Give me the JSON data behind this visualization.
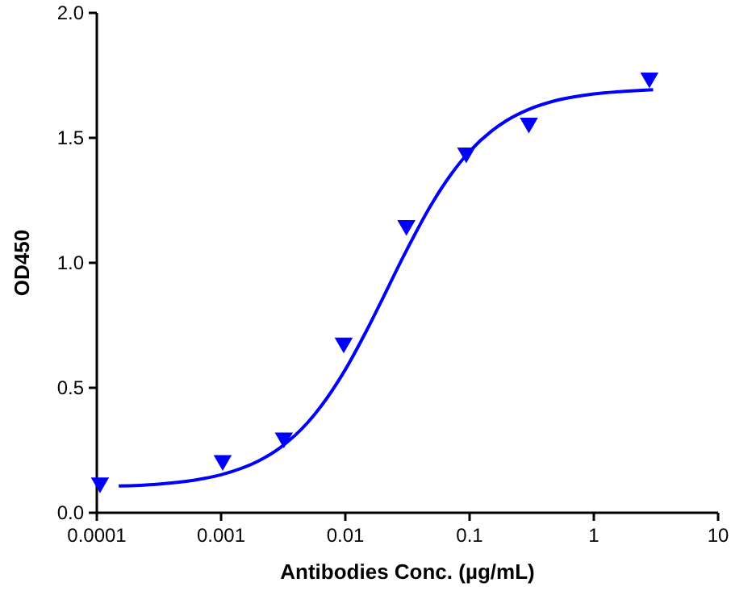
{
  "chart_data": {
    "type": "scatter",
    "xlabel": "Antibodies Conc. (µg/mL)",
    "ylabel": "OD450",
    "log": "x",
    "xlim": [
      0.0001,
      10
    ],
    "xticks": [
      0.0001,
      0.001,
      0.01,
      0.1,
      1,
      10
    ],
    "ylim": [
      0,
      2
    ],
    "yticks": [
      {
        "value": 0,
        "label": "0.0"
      },
      {
        "value": 0.5,
        "label": "0.5"
      },
      {
        "value": 1,
        "label": "1.0"
      },
      {
        "value": 1.5,
        "label": "1.5"
      },
      {
        "value": 2,
        "label": "2.0"
      }
    ],
    "grid": false,
    "series": [
      {
        "color": "#0000ff",
        "marker": "triangle",
        "x": [
          0.000106,
          0.00103,
          0.0032,
          0.0097,
          0.031,
          0.094,
          0.3,
          2.8
        ],
        "values": [
          0.12,
          0.21,
          0.3,
          0.68,
          1.15,
          1.44,
          1.56,
          1.74
        ]
      },
      {
        "type": "line",
        "color": "#0000ff",
        "marker": "none",
        "line_style": "solid",
        "x": [
          0.00015,
          0.0003,
          0.0006,
          0.001,
          0.002,
          0.003,
          0.005,
          0.007,
          0.01,
          0.015,
          0.02,
          0.03,
          0.05,
          0.07,
          0.1,
          0.15,
          0.2,
          0.3,
          0.5,
          1,
          2,
          3
        ],
        "values": [
          0.107,
          0.114,
          0.13,
          0.152,
          0.207,
          0.261,
          0.362,
          0.454,
          0.573,
          0.734,
          0.858,
          1.035,
          1.239,
          1.35,
          1.446,
          1.527,
          1.57,
          1.614,
          1.65,
          1.676,
          1.688,
          1.693
        ]
      }
    ]
  }
}
